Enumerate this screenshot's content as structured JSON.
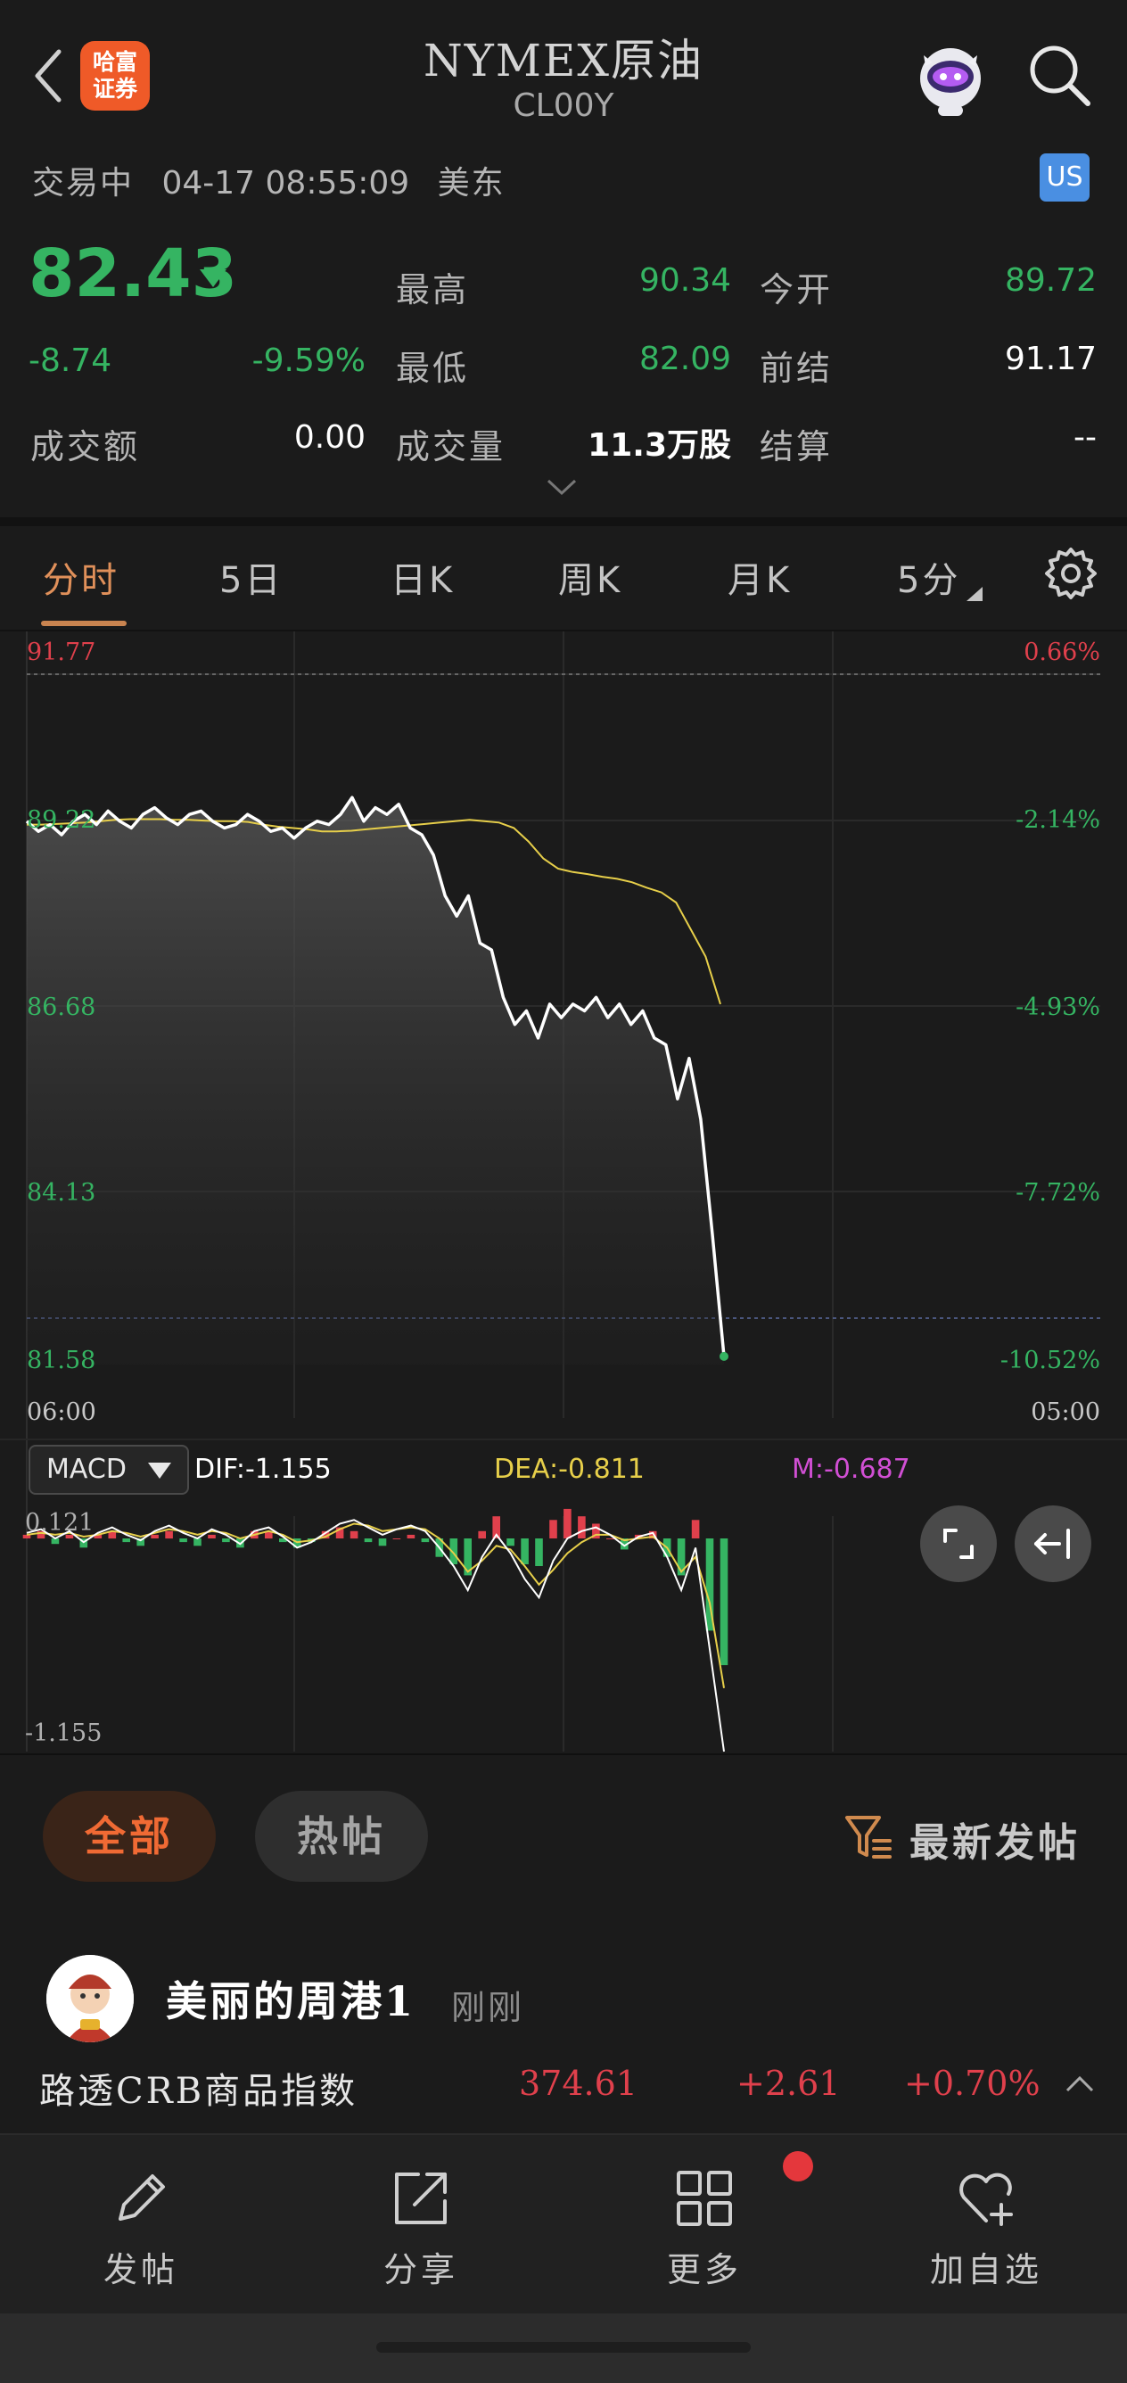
{
  "header": {
    "title": "NYMEX原油",
    "symbol": "CL00Y",
    "logo_text_line1": "哈富",
    "logo_text_line2": "证券",
    "status": "交易中",
    "datetime": "04-17 08:55:09",
    "timezone": "美东",
    "market_badge": "US"
  },
  "quote": {
    "price": "82.43",
    "change": "-8.74",
    "change_pct": "-9.59%",
    "high_label": "最高",
    "high": "90.34",
    "open_label": "今开",
    "open": "89.72",
    "low_label": "最低",
    "low": "82.09",
    "prev_settle_label": "前结",
    "prev_settle": "91.17",
    "turnover_label": "成交额",
    "turnover": "0.00",
    "volume_label": "成交量",
    "volume": "11.3万股",
    "settle_label": "结算",
    "settle": "--"
  },
  "tabs": [
    {
      "label": "分时",
      "active": true
    },
    {
      "label": "5日"
    },
    {
      "label": "日K"
    },
    {
      "label": "周K"
    },
    {
      "label": "月K"
    },
    {
      "label": "5分"
    }
  ],
  "chart_data": {
    "type": "line",
    "y_ticks_left": [
      "91.77",
      "89.22",
      "86.68",
      "84.13",
      "81.58"
    ],
    "y_ticks_right": [
      "0.66%",
      "-2.14%",
      "-4.93%",
      "-7.72%",
      "-10.52%"
    ],
    "x_ticks": [
      "06:00",
      "05:00"
    ],
    "ylim": [
      81.58,
      91.77
    ],
    "series": [
      {
        "values": [
          89.6,
          89.45,
          89.55,
          89.4,
          89.6,
          89.7,
          89.55,
          89.75,
          89.6,
          89.5,
          89.7,
          89.8,
          89.65,
          89.55,
          89.7,
          89.75,
          89.6,
          89.5,
          89.55,
          89.7,
          89.6,
          89.45,
          89.5,
          89.35,
          89.5,
          89.6,
          89.55,
          89.7,
          89.95,
          89.6,
          89.8,
          89.7,
          89.85,
          89.5,
          89.4,
          89.1,
          88.5,
          88.2,
          88.5,
          87.8,
          87.7,
          87.0,
          86.6,
          86.8,
          86.4,
          86.9,
          86.7,
          86.9,
          86.8,
          87.0,
          86.7,
          86.9,
          86.6,
          86.8,
          86.4,
          86.3,
          85.5,
          86.1,
          85.2,
          83.5,
          81.7
        ]
      },
      {
        "values": [
          89.55,
          89.55,
          89.56,
          89.57,
          89.58,
          89.6,
          89.62,
          89.63,
          89.63,
          89.63,
          89.62,
          89.62,
          89.61,
          89.6,
          89.6,
          89.59,
          89.55,
          89.52,
          89.5,
          89.48,
          89.45,
          89.45,
          89.46,
          89.48,
          89.5,
          89.52,
          89.54,
          89.56,
          89.58,
          89.6,
          89.62,
          89.6,
          89.58,
          89.5,
          89.3,
          89.05,
          88.9,
          88.85,
          88.82,
          88.78,
          88.75,
          88.7,
          88.62,
          88.55,
          88.4,
          88.0,
          87.6,
          86.9
        ]
      }
    ],
    "macd": {
      "type": "line",
      "label": "MACD",
      "dif": "DIF:-1.155",
      "dea": "DEA:-0.811",
      "m": "M:-0.687",
      "y_top": "0.121",
      "y_bottom": "-1.155",
      "ylim": [
        -1.155,
        0.121
      ],
      "dif_values": [
        0.03,
        0.05,
        0.0,
        0.04,
        -0.02,
        0.03,
        0.06,
        0.02,
        -0.01,
        0.04,
        0.07,
        0.03,
        0.0,
        0.05,
        0.02,
        -0.03,
        0.04,
        0.06,
        0.01,
        -0.05,
        -0.02,
        0.03,
        0.08,
        0.1,
        0.06,
        0.02,
        0.05,
        0.07,
        0.04,
        -0.05,
        -0.15,
        -0.28,
        -0.1,
        0.02,
        -0.08,
        -0.22,
        -0.32,
        -0.12,
        0.0,
        0.04,
        0.06,
        0.02,
        -0.04,
        0.01,
        0.03,
        -0.1,
        -0.28,
        -0.05,
        -0.6,
        -1.155
      ],
      "dea_values": [
        0.02,
        0.03,
        0.02,
        0.03,
        0.01,
        0.02,
        0.04,
        0.03,
        0.01,
        0.03,
        0.05,
        0.04,
        0.02,
        0.04,
        0.03,
        0.0,
        0.02,
        0.04,
        0.02,
        -0.02,
        -0.01,
        0.01,
        0.05,
        0.08,
        0.07,
        0.04,
        0.05,
        0.06,
        0.05,
        0.0,
        -0.08,
        -0.18,
        -0.12,
        -0.04,
        -0.06,
        -0.15,
        -0.25,
        -0.17,
        -0.08,
        -0.02,
        0.02,
        0.02,
        -0.01,
        0.0,
        0.01,
        -0.05,
        -0.18,
        -0.1,
        -0.35,
        -0.811
      ],
      "hist_values": [
        0.02,
        0.04,
        -0.03,
        0.02,
        -0.05,
        0.02,
        0.04,
        -0.02,
        -0.04,
        0.02,
        0.04,
        -0.02,
        -0.04,
        0.02,
        -0.02,
        -0.05,
        0.04,
        0.04,
        -0.02,
        -0.05,
        -0.02,
        0.04,
        0.06,
        0.04,
        -0.02,
        -0.04,
        0.0,
        0.02,
        -0.02,
        -0.1,
        -0.14,
        -0.2,
        0.04,
        0.12,
        -0.04,
        -0.14,
        -0.15,
        0.1,
        0.16,
        0.12,
        0.08,
        0.0,
        -0.06,
        0.02,
        0.04,
        -0.1,
        -0.2,
        0.1,
        -0.5,
        -0.687
      ]
    }
  },
  "colors": {
    "up": "#e0404c",
    "down": "#35b462",
    "price_line": "#ffffff",
    "avg_line": "#e7cf4a",
    "dif_line": "#ffffff",
    "dea_line": "#e7cf4a",
    "m_label": "#d14fd4",
    "accent": "#e0905a"
  },
  "community": {
    "tab_all": "全部",
    "tab_hot": "热帖",
    "sort_label": "最新发帖",
    "post_user": "美丽的周港1",
    "post_time": "刚刚"
  },
  "ticker": {
    "name": "路透CRB商品指数",
    "value": "374.61",
    "change": "+2.61",
    "change_pct": "+0.70%"
  },
  "toolbar": {
    "post": "发帖",
    "share": "分享",
    "more": "更多",
    "watchlist": "加自选"
  },
  "icons": {
    "back": "chevron-left-icon",
    "search": "search-icon",
    "settings": "gear-icon",
    "filter": "filter-icon",
    "post": "pencil-icon",
    "share": "share-icon",
    "more": "grid-icon",
    "watchlist": "heart-plus-icon"
  }
}
